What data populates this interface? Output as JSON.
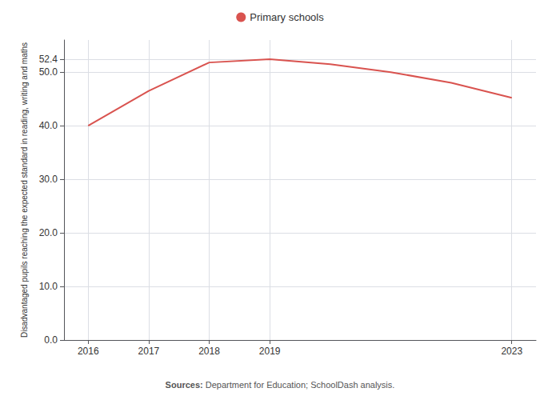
{
  "chart_data": {
    "type": "line",
    "y_label": "Disadvantaged pupils reaching the expected standard in reading, writing and maths",
    "x": [
      2016,
      2017,
      2018,
      2019,
      2020,
      2021,
      2022,
      2023
    ],
    "series": [
      {
        "name": "Primary schools",
        "color": "#d9534f",
        "values": [
          40.0,
          46.5,
          51.8,
          52.4,
          51.5,
          50.0,
          48.0,
          45.2
        ]
      }
    ],
    "xlim": [
      2015.6,
      2023.4
    ],
    "xticks": [
      2016,
      2017,
      2018,
      2019,
      2023
    ],
    "ylim": [
      0,
      56
    ],
    "yticks": [
      {
        "value": 0.0,
        "label": "0.0"
      },
      {
        "value": 10.0,
        "label": "10.0"
      },
      {
        "value": 20.0,
        "label": "20.0"
      },
      {
        "value": 30.0,
        "label": "30.0"
      },
      {
        "value": 40.0,
        "label": "40.0"
      },
      {
        "value": 50.0,
        "label": "50.0"
      },
      52.4
    ],
    "grid": true,
    "legend": "top",
    "annotations": [
      "Sources: Department for Education; SchoolDash analysis."
    ]
  }
}
